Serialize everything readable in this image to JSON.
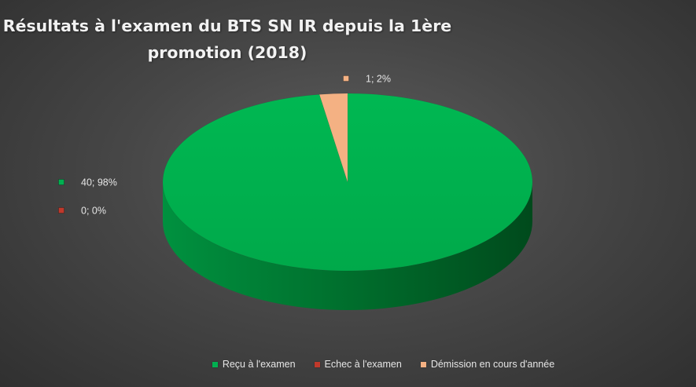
{
  "chart_data": {
    "type": "pie",
    "title_lines": [
      "Résultats à l'examen du BTS SN IR depuis la 1ère",
      "promotion (2018)"
    ],
    "categories": [
      "Reçu à l'examen",
      "Echec à l'examen",
      "Démission en cours d'année"
    ],
    "values": [
      40,
      0,
      1
    ],
    "percentages": [
      98,
      0,
      2
    ],
    "data_labels": [
      "40; 98%",
      "0; 0%",
      "1; 2%"
    ],
    "colors": [
      "#00b050",
      "#c0392b",
      "#f4b183"
    ],
    "style": "3d",
    "legend_position": "bottom"
  }
}
